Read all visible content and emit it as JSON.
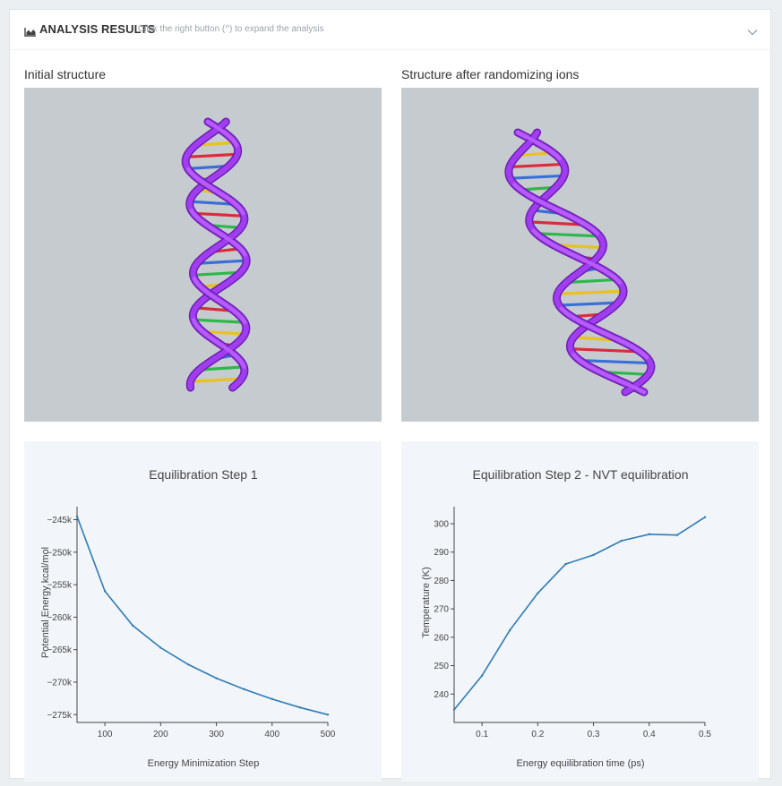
{
  "header": {
    "title": "ANALYSIS RESULTS",
    "hint": "Click the right button (^) to expand the analysis",
    "icon": "area-chart-icon",
    "toggle_icon": "chevron-down-icon"
  },
  "viewers": [
    {
      "title": "Initial structure"
    },
    {
      "title": "Structure after randomizing ions"
    }
  ],
  "colors": {
    "viewer_bg": "#c6cbd0",
    "plot_bg": "#f2f6fa",
    "line": "#2f7bb5",
    "ribbon": "#a13df0"
  },
  "chart_data": [
    {
      "type": "line",
      "title": "Equilibration Step 1",
      "xlabel": "Energy Minimization Step",
      "ylabel": "Potential Energy kcal/mol",
      "x": [
        50,
        100,
        150,
        200,
        250,
        300,
        350,
        400,
        450,
        500
      ],
      "y": [
        -244500,
        -256000,
        -261300,
        -264700,
        -267300,
        -269400,
        -271100,
        -272600,
        -273900,
        -275000
      ],
      "xlim": [
        50,
        500
      ],
      "ylim": [
        -276200,
        -243000
      ],
      "xticks": [
        100,
        200,
        300,
        400,
        500
      ],
      "xtick_labels": [
        "100",
        "200",
        "300",
        "400",
        "500"
      ],
      "yticks": [
        -245000,
        -250000,
        -255000,
        -260000,
        -265000,
        -270000,
        -275000
      ],
      "ytick_labels": [
        "−245k",
        "−250k",
        "−255k",
        "−260k",
        "−265k",
        "−270k",
        "−275k"
      ]
    },
    {
      "type": "line",
      "title": "Equilibration Step 2 - NVT equilibration",
      "xlabel": "Energy equilibration time (ps)",
      "ylabel": "Temperature (K)",
      "x": [
        0.05,
        0.1,
        0.15,
        0.2,
        0.25,
        0.3,
        0.35,
        0.4,
        0.45,
        0.5
      ],
      "y": [
        234.5,
        246.5,
        262.5,
        275.5,
        285.8,
        289,
        294,
        296.3,
        296,
        302.3
      ],
      "xlim": [
        0.05,
        0.5
      ],
      "ylim": [
        230,
        306
      ],
      "xticks": [
        0.1,
        0.2,
        0.3,
        0.4,
        0.5
      ],
      "xtick_labels": [
        "0.1",
        "0.2",
        "0.3",
        "0.4",
        "0.5"
      ],
      "yticks": [
        240,
        250,
        260,
        270,
        280,
        290,
        300
      ],
      "ytick_labels": [
        "240",
        "250",
        "260",
        "270",
        "280",
        "290",
        "300"
      ]
    }
  ]
}
